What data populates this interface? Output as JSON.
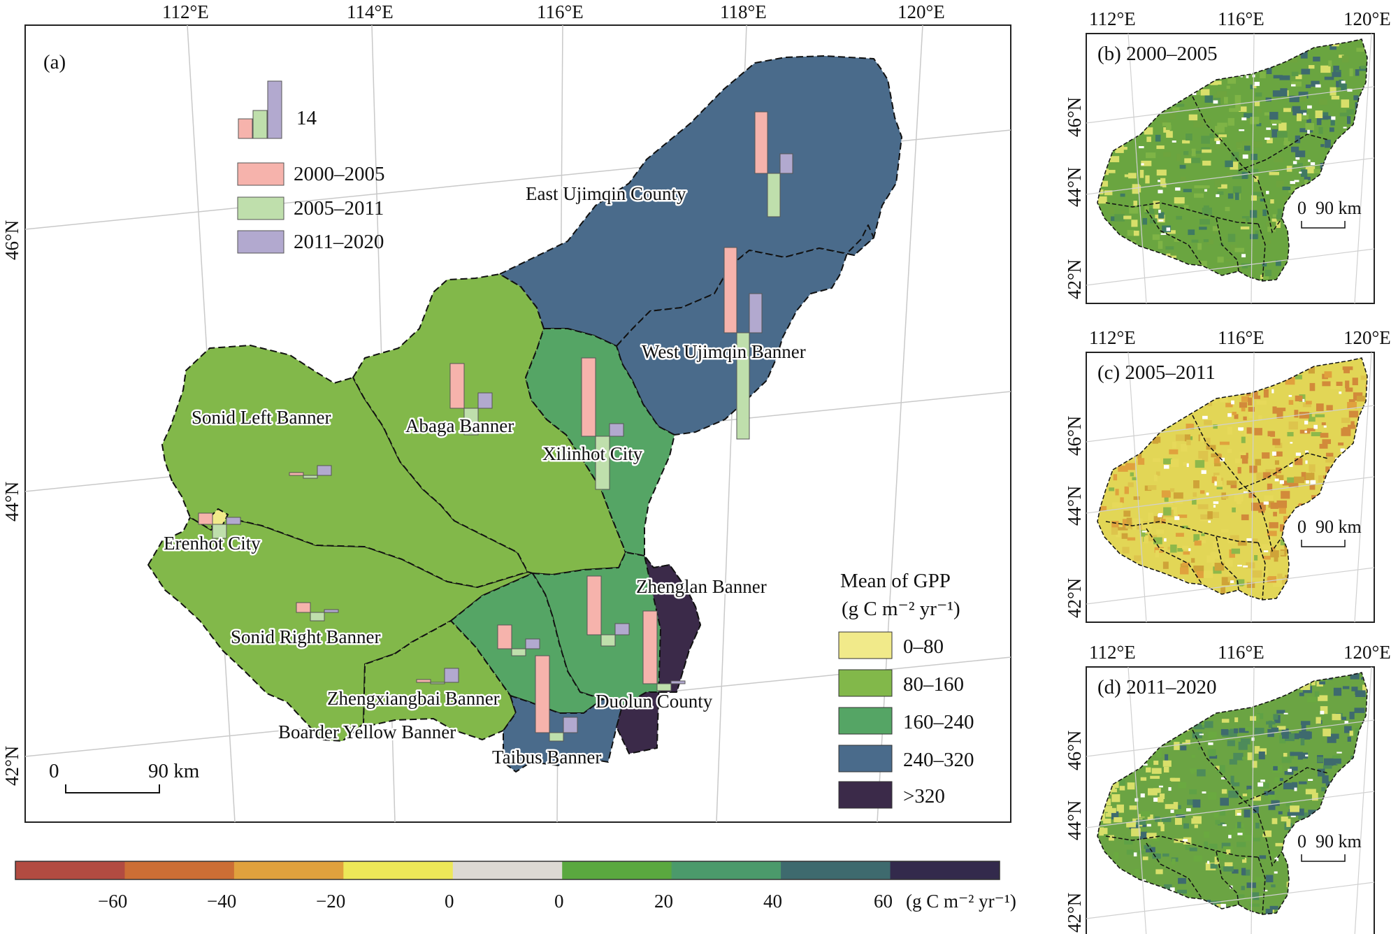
{
  "colors": {
    "gpp_0_80": "#f1ea8a",
    "gpp_80_160": "#82b84a",
    "gpp_160_240": "#55a565",
    "gpp_240_320": "#4a6b8b",
    "gpp_gt_320": "#3b2a49",
    "bar_2000_2005": "#f6b3ac",
    "bar_2005_2011": "#bfdfac",
    "bar_2011_2020": "#b2a9cf",
    "graticule": "#c9c9c9"
  },
  "main_map": {
    "panel_label": "(a)",
    "lon_ticks": [
      "112°E",
      "114°E",
      "116°E",
      "118°E",
      "120°E"
    ],
    "lat_ticks": [
      "46°N",
      "44°N",
      "42°N"
    ],
    "scale_bar": {
      "start": "0",
      "end": "90 km"
    },
    "bar_key": {
      "value_label": "14"
    },
    "legend_periods": [
      "2000–2005",
      "2005–2011",
      "2011–2020"
    ],
    "regions": [
      {
        "name": "East Ujimqin County",
        "mean_gpp_class": "240–320"
      },
      {
        "name": "West Ujimqin Banner",
        "mean_gpp_class": "240–320"
      },
      {
        "name": "Sonid Left Banner",
        "mean_gpp_class": "80–160"
      },
      {
        "name": "Abaga Banner",
        "mean_gpp_class": "80–160"
      },
      {
        "name": "Xilinhot City",
        "mean_gpp_class": "160–240"
      },
      {
        "name": "Erenhot City",
        "mean_gpp_class": "0–80"
      },
      {
        "name": "Sonid Right Banner",
        "mean_gpp_class": "80–160"
      },
      {
        "name": "Zhenglan Banner",
        "mean_gpp_class": "160–240"
      },
      {
        "name": "Zhengxiangbai Banner",
        "mean_gpp_class": "160–240"
      },
      {
        "name": "Duolun County",
        "mean_gpp_class": ">320"
      },
      {
        "name": "Boarder Yellow Banner",
        "mean_gpp_class": "80–160"
      },
      {
        "name": "Taibus Banner",
        "mean_gpp_class": "240–320"
      }
    ],
    "gpp_legend": {
      "title_line1": "Mean of GPP",
      "title_line2": "(g C m⁻² yr⁻¹)",
      "classes": [
        "0–80",
        "80–160",
        "160–240",
        "240–320",
        ">320"
      ]
    }
  },
  "colorbar": {
    "tick_labels": [
      "−60",
      "−40",
      "−20",
      "0",
      "0",
      "20",
      "40",
      "60"
    ],
    "unit": "(g C m⁻² yr⁻¹)",
    "colors": [
      "#b24b41",
      "#cc6e35",
      "#e0a13d",
      "#ede858",
      "#ddd9d3",
      "#5aa83f",
      "#4b9a6b",
      "#3e6a6e",
      "#332a4c"
    ]
  },
  "insets": [
    {
      "label": "(b) 2000–2005",
      "lon_ticks": [
        "112°E",
        "116°E",
        "120°E"
      ],
      "lat_ticks": [
        "46°N",
        "44°N",
        "42°N"
      ],
      "scale_bar": {
        "start": "0",
        "end": "90 km"
      }
    },
    {
      "label": "(c) 2005–2011",
      "lon_ticks": [
        "112°E",
        "116°E",
        "120°E"
      ],
      "lat_ticks": [
        "46°N",
        "44°N",
        "42°N"
      ],
      "scale_bar": {
        "start": "0",
        "end": "90 km"
      }
    },
    {
      "label": "(d) 2011–2020",
      "lon_ticks": [
        "112°E",
        "116°E",
        "120°E"
      ],
      "lat_ticks": [
        "46°N",
        "44°N",
        "42°N"
      ],
      "scale_bar": {
        "start": "0",
        "end": "90 km"
      }
    }
  ]
}
